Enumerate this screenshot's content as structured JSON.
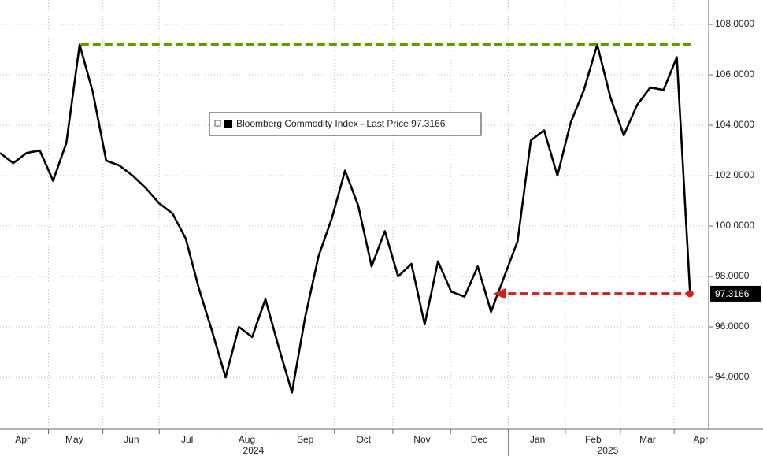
{
  "chart_data": {
    "type": "line",
    "legend_label": "Bloomberg Commodity Index - Last Price 97.3166",
    "series": [
      {
        "name": "Bloomberg Commodity Index",
        "color": "#000000",
        "values": [
          102.9,
          102.5,
          102.9,
          103.0,
          101.8,
          103.3,
          107.2,
          105.3,
          102.6,
          102.4,
          102.0,
          101.5,
          100.9,
          100.5,
          99.5,
          97.5,
          95.8,
          94.0,
          96.0,
          95.6,
          97.1,
          95.2,
          93.4,
          96.4,
          98.8,
          100.3,
          102.2,
          100.8,
          98.4,
          99.8,
          98.0,
          98.5,
          96.1,
          98.6,
          97.4,
          97.2,
          98.4,
          96.6,
          98.0,
          99.4,
          103.4,
          103.8,
          102.0,
          104.1,
          105.4,
          107.2,
          105.1,
          103.6,
          104.8,
          105.5,
          105.4,
          106.7,
          97.3166
        ]
      }
    ],
    "xlim": [
      0,
      53.4
    ],
    "xticks": [
      {
        "value": 1.7,
        "label": "Apr"
      },
      {
        "value": 5.6,
        "label": "May"
      },
      {
        "value": 9.9,
        "label": "Jun"
      },
      {
        "value": 14.1,
        "label": "Jul"
      },
      {
        "value": 18.6,
        "label": "Aug"
      },
      {
        "value": 23.0,
        "label": "Sep"
      },
      {
        "value": 27.4,
        "label": "Oct"
      },
      {
        "value": 31.8,
        "label": "Nov"
      },
      {
        "value": 36.1,
        "label": "Dec"
      },
      {
        "value": 40.5,
        "label": "Jan"
      },
      {
        "value": 44.7,
        "label": "Feb"
      },
      {
        "value": 48.8,
        "label": "Mar"
      },
      {
        "value": 52.8,
        "label": "Apr"
      }
    ],
    "year_labels": [
      {
        "value": 19.1,
        "label": "2024"
      },
      {
        "value": 45.8,
        "label": "2025"
      }
    ],
    "ylim": [
      91.94,
      108.97
    ],
    "yticks": [
      {
        "value": 94,
        "label": "94.0000"
      },
      {
        "value": 96,
        "label": "96.0000"
      },
      {
        "value": 98,
        "label": "98.0000"
      },
      {
        "value": 100,
        "label": "100.0000"
      },
      {
        "value": 102,
        "label": "102.0000"
      },
      {
        "value": 104,
        "label": "104.0000"
      },
      {
        "value": 106,
        "label": "106.0000"
      },
      {
        "value": 108,
        "label": "108.0000"
      }
    ],
    "reference_lines": [
      {
        "value": 107.2,
        "from": 6.1,
        "to": 52.1,
        "color": "#5e9a00"
      },
      {
        "value": 97.3166,
        "from": 37.4,
        "to": 52.0,
        "color": "#d42020"
      }
    ],
    "grid": true
  }
}
